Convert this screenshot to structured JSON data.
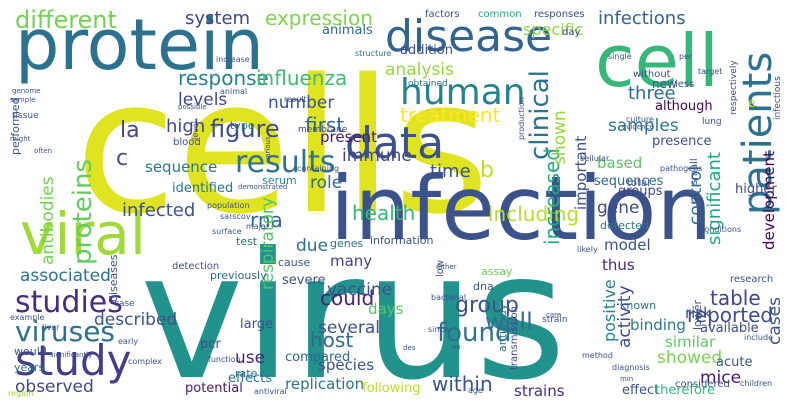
{
  "word_cloud": {
    "background": "#ffffff",
    "palette": "viridis",
    "orientation_rule": "vertical words read bottom-to-top",
    "words": [
      {
        "text": "cells",
        "color": "#e0e31f",
        "vertical": false
      },
      {
        "text": "virus",
        "color": "#21928c",
        "vertical": false
      },
      {
        "text": "infection",
        "color": "#3b528b",
        "vertical": false
      },
      {
        "text": "protein",
        "color": "#2c728e",
        "vertical": false
      },
      {
        "text": "cell",
        "color": "#35b779",
        "vertical": false
      },
      {
        "text": "viral",
        "color": "#a0da39",
        "vertical": false
      },
      {
        "text": "disease",
        "color": "#32648e",
        "vertical": false
      },
      {
        "text": "data",
        "color": "#3b528b",
        "vertical": false
      },
      {
        "text": "patients",
        "color": "#2c728e",
        "vertical": true
      },
      {
        "text": "study",
        "color": "#433e85",
        "vertical": false
      },
      {
        "text": "human",
        "color": "#25838e",
        "vertical": false
      },
      {
        "text": "results",
        "color": "#2c728e",
        "vertical": false
      },
      {
        "text": "studies",
        "color": "#472d7b",
        "vertical": false
      },
      {
        "text": "viruses",
        "color": "#2d708e",
        "vertical": false
      },
      {
        "text": "proteins",
        "color": "#65cb5e",
        "vertical": true
      },
      {
        "text": "different",
        "color": "#75d054",
        "vertical": false
      },
      {
        "text": "expression",
        "color": "#7fd34e",
        "vertical": false
      },
      {
        "text": "system",
        "color": "#404688",
        "vertical": false
      },
      {
        "text": "infections",
        "color": "#33638d",
        "vertical": false
      },
      {
        "text": "response",
        "color": "#26828e",
        "vertical": false
      },
      {
        "text": "influenza",
        "color": "#3dbc74",
        "vertical": false
      },
      {
        "text": "levels",
        "color": "#3e4989",
        "vertical": false
      },
      {
        "text": "analysis",
        "color": "#95d840",
        "vertical": false
      },
      {
        "text": "specific",
        "color": "#8ed645",
        "vertical": false
      },
      {
        "text": "addition",
        "color": "#3e4c8a",
        "vertical": false
      },
      {
        "text": "animals",
        "color": "#31688e",
        "vertical": false
      },
      {
        "text": "figure",
        "color": "#3e4c8a",
        "vertical": false
      },
      {
        "text": "high",
        "color": "#3f4889",
        "vertical": false
      },
      {
        "text": "number",
        "color": "#3b528b",
        "vertical": false
      },
      {
        "text": "first",
        "color": "#31688e",
        "vertical": false
      },
      {
        "text": "treatment",
        "color": "#fde725",
        "vertical": false
      },
      {
        "text": "clinical",
        "color": "#2c728e",
        "vertical": true
      },
      {
        "text": "increased",
        "color": "#22a884",
        "vertical": true
      },
      {
        "text": "shown",
        "color": "#95d840",
        "vertical": true
      },
      {
        "text": "three",
        "color": "#2e6e8e",
        "vertical": false
      },
      {
        "text": "significant",
        "color": "#22a884",
        "vertical": true
      },
      {
        "text": "development",
        "color": "#440154",
        "vertical": true
      },
      {
        "text": "la",
        "color": "#414487",
        "vertical": false
      },
      {
        "text": "c",
        "color": "#3b528b",
        "vertical": false
      },
      {
        "text": "antibodies",
        "color": "#75d054",
        "vertical": true
      },
      {
        "text": "immune",
        "color": "#414487",
        "vertical": false
      },
      {
        "text": "time",
        "color": "#3b528b",
        "vertical": false
      },
      {
        "text": "b",
        "color": "#bddf26",
        "vertical": false
      },
      {
        "text": "samples",
        "color": "#2a788e",
        "vertical": false
      },
      {
        "text": "present",
        "color": "#48186a",
        "vertical": false
      },
      {
        "text": "sequence",
        "color": "#2a788e",
        "vertical": false
      },
      {
        "text": "identified",
        "color": "#2c728e",
        "vertical": false
      },
      {
        "text": "role",
        "color": "#2f6c8e",
        "vertical": false
      },
      {
        "text": "rna",
        "color": "#31688e",
        "vertical": false
      },
      {
        "text": "infected",
        "color": "#3b528b",
        "vertical": false
      },
      {
        "text": "health",
        "color": "#35b779",
        "vertical": false
      },
      {
        "text": "including",
        "color": "#b5de2b",
        "vertical": false
      },
      {
        "text": "gene",
        "color": "#3e4a89",
        "vertical": false
      },
      {
        "text": "control",
        "color": "#31688e",
        "vertical": true
      },
      {
        "text": "based",
        "color": "#58c765",
        "vertical": false
      },
      {
        "text": "associated",
        "color": "#2c728e",
        "vertical": false
      },
      {
        "text": "respiratory",
        "color": "#54c568",
        "vertical": true
      },
      {
        "text": "could",
        "color": "#481f70",
        "vertical": false
      },
      {
        "text": "group",
        "color": "#3b528b",
        "vertical": false
      },
      {
        "text": "well",
        "color": "#2c728e",
        "vertical": false
      },
      {
        "text": "model",
        "color": "#3b528b",
        "vertical": false
      },
      {
        "text": "thus",
        "color": "#472a7a",
        "vertical": false
      },
      {
        "text": "table",
        "color": "#414487",
        "vertical": false
      },
      {
        "text": "reported",
        "color": "#3e4c8a",
        "vertical": false
      },
      {
        "text": "cases",
        "color": "#3b528b",
        "vertical": true
      },
      {
        "text": "found",
        "color": "#2c728e",
        "vertical": false
      },
      {
        "text": "host",
        "color": "#31688e",
        "vertical": false
      },
      {
        "text": "vaccine",
        "color": "#3b528b",
        "vertical": false
      },
      {
        "text": "days",
        "color": "#54c568",
        "vertical": false
      },
      {
        "text": "activity",
        "color": "#3e4c8a",
        "vertical": true
      },
      {
        "text": "positive",
        "color": "#25838e",
        "vertical": true
      },
      {
        "text": "binding",
        "color": "#2a788e",
        "vertical": false
      },
      {
        "text": "showed",
        "color": "#7ad151",
        "vertical": false
      },
      {
        "text": "similar",
        "color": "#5ec962",
        "vertical": false
      },
      {
        "text": "mice",
        "color": "#481a6c",
        "vertical": false
      },
      {
        "text": "described",
        "color": "#3b528b",
        "vertical": false
      },
      {
        "text": "use",
        "color": "#482475",
        "vertical": false
      },
      {
        "text": "several",
        "color": "#3b528b",
        "vertical": false
      },
      {
        "text": "compared",
        "color": "#31688e",
        "vertical": false
      },
      {
        "text": "species",
        "color": "#3b528b",
        "vertical": false
      },
      {
        "text": "within",
        "color": "#3b528b",
        "vertical": false
      },
      {
        "text": "observed",
        "color": "#3e4989",
        "vertical": false
      },
      {
        "text": "replication",
        "color": "#2c728e",
        "vertical": false
      },
      {
        "text": "strains",
        "color": "#472d7b",
        "vertical": false
      },
      {
        "text": "effect",
        "color": "#3b528b",
        "vertical": false
      },
      {
        "text": "therefore",
        "color": "#35b779",
        "vertical": false
      },
      {
        "text": "following",
        "color": "#bddf26",
        "vertical": false
      },
      {
        "text": "potential",
        "color": "#481b6d",
        "vertical": false
      },
      {
        "text": "effects",
        "color": "#2c728e",
        "vertical": false
      },
      {
        "text": "years",
        "color": "#2c728e",
        "vertical": false
      },
      {
        "text": "would",
        "color": "#3b528b",
        "vertical": false
      },
      {
        "text": "pcr",
        "color": "#3b528b",
        "vertical": false
      },
      {
        "text": "rate",
        "color": "#2c728e",
        "vertical": false
      },
      {
        "text": "acute",
        "color": "#3b528b",
        "vertical": false
      },
      {
        "text": "available",
        "color": "#3e4c8a",
        "vertical": false
      },
      {
        "text": "risk",
        "color": "#3b528b",
        "vertical": false
      },
      {
        "text": "known",
        "color": "#2c728e",
        "vertical": false
      },
      {
        "text": "higher",
        "color": "#3e4c8a",
        "vertical": false
      },
      {
        "text": "groups",
        "color": "#404688",
        "vertical": false
      },
      {
        "text": "due",
        "color": "#2c728e",
        "vertical": false
      },
      {
        "text": "many",
        "color": "#414487",
        "vertical": false
      },
      {
        "text": "severe",
        "color": "#3b528b",
        "vertical": false
      },
      {
        "text": "large",
        "color": "#3b528b",
        "vertical": false
      },
      {
        "text": "previously",
        "color": "#31688e",
        "vertical": false
      },
      {
        "text": "test",
        "color": "#2c728e",
        "vertical": false
      },
      {
        "text": "sequences",
        "color": "#31688e",
        "vertical": false
      },
      {
        "text": "detected",
        "color": "#2a788e",
        "vertical": false
      },
      {
        "text": "important",
        "color": "#3b528b",
        "vertical": true
      },
      {
        "text": "although",
        "color": "#440154",
        "vertical": false
      },
      {
        "text": "presence",
        "color": "#3b528b",
        "vertical": false
      },
      {
        "text": "factors",
        "color": "#3b528b",
        "vertical": false
      },
      {
        "text": "common",
        "color": "#22a884",
        "vertical": false
      },
      {
        "text": "responses",
        "color": "#3b528b",
        "vertical": false
      },
      {
        "text": "day",
        "color": "#3e4c8a",
        "vertical": false
      },
      {
        "text": "new",
        "color": "#3b528b",
        "vertical": false
      },
      {
        "text": "less",
        "color": "#3b528b",
        "vertical": false
      },
      {
        "text": "single",
        "color": "#3b528b",
        "vertical": false
      },
      {
        "text": "without",
        "color": "#3b528b",
        "vertical": false
      },
      {
        "text": "respectively",
        "color": "#3e4c8a",
        "vertical": true
      },
      {
        "text": "infectious",
        "color": "#3e4c8a",
        "vertical": true
      },
      {
        "text": "structure",
        "color": "#2c728e",
        "vertical": false
      },
      {
        "text": "obtained",
        "color": "#2c728e",
        "vertical": false
      },
      {
        "text": "production",
        "color": "#3b528b",
        "vertical": true
      },
      {
        "text": "type",
        "color": "#2c728e",
        "vertical": false
      },
      {
        "text": "level",
        "color": "#3b528b",
        "vertical": true
      },
      {
        "text": "membrane",
        "color": "#3e4c8a",
        "vertical": false
      },
      {
        "text": "containing",
        "color": "#3b528b",
        "vertical": false
      },
      {
        "text": "serum",
        "color": "#21918c",
        "vertical": false
      },
      {
        "text": "cause",
        "color": "#3b528b",
        "vertical": false
      },
      {
        "text": "genes",
        "color": "#2c728e",
        "vertical": false
      },
      {
        "text": "information",
        "color": "#3b528b",
        "vertical": false
      },
      {
        "text": "assay",
        "color": "#6ece58",
        "vertical": false
      },
      {
        "text": "low",
        "color": "#3b528b",
        "vertical": true
      },
      {
        "text": "dna",
        "color": "#3b528b",
        "vertical": false
      },
      {
        "text": "antibody",
        "color": "#2c728e",
        "vertical": true
      },
      {
        "text": "transmission",
        "color": "#3e4c8a",
        "vertical": true
      },
      {
        "text": "diseases",
        "color": "#3b528b",
        "vertical": true
      },
      {
        "text": "performed",
        "color": "#3b528b",
        "vertical": true
      },
      {
        "text": "tissue",
        "color": "#3b528b",
        "vertical": false
      },
      {
        "text": "blood",
        "color": "#3b528b",
        "vertical": false
      },
      {
        "text": "detection",
        "color": "#3b528b",
        "vertical": false
      },
      {
        "text": "case",
        "color": "#3b528b",
        "vertical": false
      },
      {
        "text": "research",
        "color": "#3b528b",
        "vertical": false
      },
      {
        "text": "culture",
        "color": "#3b528b",
        "vertical": false
      },
      {
        "text": "evidence",
        "color": "#3b528b",
        "vertical": false
      },
      {
        "text": "lung",
        "color": "#3b528b",
        "vertical": false
      },
      {
        "text": "cellular",
        "color": "#3e4c8a",
        "vertical": false
      },
      {
        "text": "total",
        "color": "#3b528b",
        "vertical": false
      },
      {
        "text": "considered",
        "color": "#3b528b",
        "vertical": false
      },
      {
        "text": "children",
        "color": "#3b528b",
        "vertical": false
      },
      {
        "text": "bacterial",
        "color": "#3b528b",
        "vertical": false
      },
      {
        "text": "method",
        "color": "#3b528b",
        "vertical": false
      },
      {
        "text": "diagnosis",
        "color": "#3b528b",
        "vertical": false
      },
      {
        "text": "lower",
        "color": "#3b528b",
        "vertical": true
      },
      {
        "text": "small",
        "color": "#3b528b",
        "vertical": true
      },
      {
        "text": "strain",
        "color": "#3b528b",
        "vertical": false
      },
      {
        "text": "function",
        "color": "#3b528b",
        "vertical": false
      },
      {
        "text": "surface",
        "color": "#3b528b",
        "vertical": false
      },
      {
        "text": "population",
        "color": "#3b528b",
        "vertical": false
      },
      {
        "text": "sarscov",
        "color": "#3b528b",
        "vertical": false
      },
      {
        "text": "major",
        "color": "#3b528b",
        "vertical": false
      },
      {
        "text": "likely",
        "color": "#3b528b",
        "vertical": false
      },
      {
        "text": "include",
        "color": "#3b528b",
        "vertical": false
      },
      {
        "text": "conditions",
        "color": "#3b528b",
        "vertical": false
      },
      {
        "text": "pathogens",
        "color": "#3b528b",
        "vertical": false
      },
      {
        "text": "complex",
        "color": "#3b528b",
        "vertical": false
      },
      {
        "text": "early",
        "color": "#3b528b",
        "vertical": false
      },
      {
        "text": "liver",
        "color": "#3b528b",
        "vertical": false
      },
      {
        "text": "example",
        "color": "#3b528b",
        "vertical": false
      },
      {
        "text": "significantly",
        "color": "#3b528b",
        "vertical": false
      },
      {
        "text": "region",
        "color": "#a0da39",
        "vertical": false
      },
      {
        "text": "age",
        "color": "#3b528b",
        "vertical": false
      },
      {
        "text": "since",
        "color": "#3b528b",
        "vertical": false
      },
      {
        "text": "antiviral",
        "color": "#3b528b",
        "vertical": false
      },
      {
        "text": "animal",
        "color": "#3b528b",
        "vertical": false
      },
      {
        "text": "result",
        "color": "#3b528b",
        "vertical": false
      },
      {
        "text": "increase",
        "color": "#3b528b",
        "vertical": false
      },
      {
        "text": "genome",
        "color": "#3b528b",
        "vertical": false
      },
      {
        "text": "sample",
        "color": "#3b528b",
        "vertical": false
      },
      {
        "text": "possible",
        "color": "#3b528b",
        "vertical": false
      },
      {
        "text": "often",
        "color": "#3b528b",
        "vertical": false
      },
      {
        "text": "might",
        "color": "#3b528b",
        "vertical": false
      },
      {
        "text": "demonstrated",
        "color": "#3b528b",
        "vertical": false
      },
      {
        "text": "various",
        "color": "#3b528b",
        "vertical": true
      },
      {
        "text": "either",
        "color": "#3b528b",
        "vertical": false
      },
      {
        "text": "per",
        "color": "#3b528b",
        "vertical": false
      },
      {
        "text": "target",
        "color": "#3b528b",
        "vertical": false
      },
      {
        "text": "care",
        "color": "#3b528b",
        "vertical": false
      },
      {
        "text": "des",
        "color": "#3b528b",
        "vertical": false
      },
      {
        "text": "en",
        "color": "#3b528b",
        "vertical": false
      },
      {
        "text": "e",
        "color": "#bddf26",
        "vertical": false
      },
      {
        "text": "min",
        "color": "#3b528b",
        "vertical": false
      }
    ]
  }
}
